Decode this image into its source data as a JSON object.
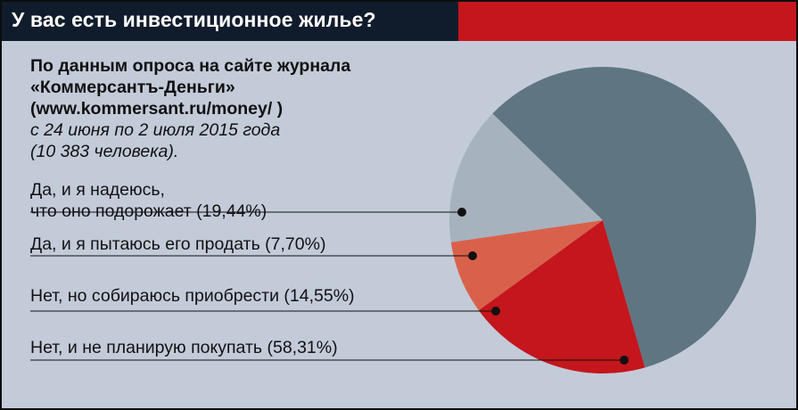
{
  "title": "У вас есть инвестиционное жилье?",
  "source": {
    "line1": "По данным опроса на сайте журнала",
    "line2": "«Коммерсантъ-Деньги»",
    "line3": "(www.kommersant.ru/money/ )",
    "line4": "с 24 июня по 2 июля 2015 года",
    "line5": "(10 383 человека)."
  },
  "colors": {
    "title_bar": "#101c2b",
    "title_accent": "#c4161c",
    "background": "#c3cbd9"
  },
  "chart_data": {
    "type": "pie",
    "title": "У вас есть инвестиционное жилье?",
    "slices": [
      {
        "label_lines": [
          "Да, и я надеюсь,",
          "что оно подорожает (19,44%)"
        ],
        "value": 19.44,
        "color": "#c4161c"
      },
      {
        "label_lines": [
          "Да, и я пытаюсь его продать (7,70%)"
        ],
        "value": 7.7,
        "color": "#d9614b"
      },
      {
        "label_lines": [
          "Нет, но собираюсь приобрести (14,55%)"
        ],
        "value": 14.55,
        "color": "#a6b3bf"
      },
      {
        "label_lines": [
          "Нет, и не планирую покупать (58,31%)"
        ],
        "value": 58.31,
        "color": "#5f7581"
      }
    ]
  }
}
